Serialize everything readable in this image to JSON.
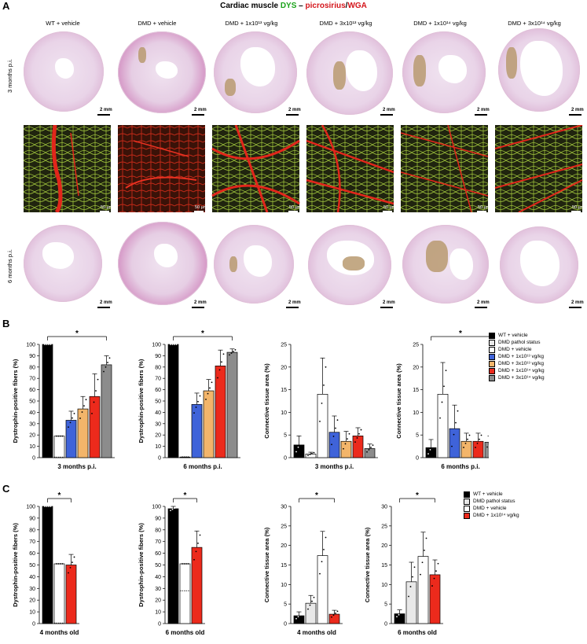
{
  "panels": {
    "a": "A",
    "b": "B",
    "c": "C"
  },
  "title": {
    "prefix": "Cardiac muscle ",
    "dys": "DYS",
    "dash": " – ",
    "picro": "picrosirius",
    "slash": "/",
    "wga": "WGA"
  },
  "panelA": {
    "columns": [
      "WT + vehicle",
      "DMD + vehicle",
      "DMD + 1x10¹³ vg/kg",
      "DMD + 3x10¹³ vg/kg",
      "DMD + 1x10¹⁴ vg/kg",
      "DMD + 3x10¹⁴ vg/kg"
    ],
    "rows": [
      "3 months p.i.",
      "6 months p.i."
    ],
    "scale_mm": "2 mm",
    "scale_um": "50 µm"
  },
  "legendB": {
    "items": [
      "WT + vehicle",
      "DMD pathol status",
      "DMD + vehicle",
      "DMD + 1x10¹³ vg/kg",
      "DMD + 3x10¹³ vg/kg",
      "DMD + 1x10¹⁴ vg/kg",
      "DMD + 3x10¹⁴ vg/kg"
    ],
    "colors": [
      "#000000",
      "#e8e8e8",
      "#ffffff",
      "#3f63d9",
      "#f3b56a",
      "#ec2a1c",
      "#8c8c8c"
    ]
  },
  "legendC": {
    "items": [
      "WT + vehicle",
      "DMD pathol status",
      "DMD + vehicle",
      "DMD + 1x10¹⁴ vg/kg"
    ],
    "colors": [
      "#000000",
      "#e8e8e8",
      "#ffffff",
      "#ec2a1c"
    ]
  },
  "chart_data": [
    {
      "id": "B1",
      "type": "bar",
      "ylabel": "Dystrophin-positive fibers (%)",
      "xlabel": "3 months p.i.",
      "ylim": [
        0,
        100
      ],
      "ticks": [
        0,
        10,
        20,
        30,
        40,
        50,
        60,
        70,
        80,
        90,
        100
      ],
      "bars": [
        {
          "fill": "#000000",
          "value": 100,
          "err": 0
        },
        {
          "fill": "#ffffff",
          "value": 19,
          "err": 0,
          "pathol": 0.5
        },
        {
          "fill": "#3f63d9",
          "value": 33,
          "err": 8
        },
        {
          "fill": "#f3b56a",
          "value": 43,
          "err": 11
        },
        {
          "fill": "#ec2a1c",
          "value": 54,
          "err": 20
        },
        {
          "fill": "#8c8c8c",
          "value": 82,
          "err": 8
        }
      ],
      "sig": "*"
    },
    {
      "id": "B2",
      "type": "bar",
      "ylabel": "Dystrophin-positive fibers (%)",
      "xlabel": "6 months p.i.",
      "ylim": [
        0,
        100
      ],
      "ticks": [
        0,
        10,
        20,
        30,
        40,
        50,
        60,
        70,
        80,
        90,
        100
      ],
      "bars": [
        {
          "fill": "#000000",
          "value": 100,
          "err": 0
        },
        {
          "fill": "#ffffff",
          "value": 0.5,
          "err": 0,
          "pathol": 0.5
        },
        {
          "fill": "#3f63d9",
          "value": 47,
          "err": 10
        },
        {
          "fill": "#f3b56a",
          "value": 59,
          "err": 10
        },
        {
          "fill": "#ec2a1c",
          "value": 81,
          "err": 14
        },
        {
          "fill": "#8c8c8c",
          "value": 93,
          "err": 3
        }
      ],
      "sig": "*"
    },
    {
      "id": "B3",
      "type": "bar",
      "ylabel": "Connective tissue area (%)",
      "xlabel": "3 months p.i.",
      "ylim": [
        0,
        25
      ],
      "ticks": [
        0,
        5,
        10,
        15,
        20,
        25
      ],
      "bars": [
        {
          "fill": "#000000",
          "value": 2.8,
          "err": 2
        },
        {
          "fill": "#ffffff",
          "value": 0.8,
          "err": 0.4
        },
        {
          "fill": "#ffffff",
          "value": 14,
          "err": 8
        },
        {
          "fill": "#3f63d9",
          "value": 5.6,
          "err": 3.6
        },
        {
          "fill": "#f3b56a",
          "value": 3.6,
          "err": 2.2
        },
        {
          "fill": "#ec2a1c",
          "value": 4.8,
          "err": 1.8
        },
        {
          "fill": "#8c8c8c",
          "value": 2,
          "err": 1
        }
      ]
    },
    {
      "id": "B4",
      "type": "bar",
      "ylabel": "Connective tissue area (%)",
      "xlabel": "6 months p.i.",
      "ylim": [
        0,
        25
      ],
      "ticks": [
        0,
        5,
        10,
        15,
        20,
        25
      ],
      "bars": [
        {
          "fill": "#000000",
          "value": 2.2,
          "err": 1.8
        },
        {
          "fill": "#ffffff",
          "value": 14,
          "err": 7
        },
        {
          "fill": "#3f63d9",
          "value": 6.4,
          "err": 5.2
        },
        {
          "fill": "#f3b56a",
          "value": 3.6,
          "err": 1.8
        },
        {
          "fill": "#ec2a1c",
          "value": 3.6,
          "err": 1.8
        },
        {
          "fill": "#8c8c8c",
          "value": 3.4,
          "err": 1.4
        }
      ],
      "sig": "*"
    },
    {
      "id": "C1",
      "type": "bar",
      "ylabel": "Dystrophin-positive fibers (%)",
      "xlabel": "4 months old",
      "ylim": [
        0,
        100
      ],
      "ticks": [
        0,
        10,
        20,
        30,
        40,
        50,
        60,
        70,
        80,
        90,
        100
      ],
      "bars": [
        {
          "fill": "#000000",
          "value": 100,
          "err": 0
        },
        {
          "fill": "#ffffff",
          "value": 51,
          "err": 0,
          "pathol": 0.5
        },
        {
          "fill": "#ec2a1c",
          "value": 50,
          "err": 9
        }
      ],
      "sig": "*"
    },
    {
      "id": "C2",
      "type": "bar",
      "ylabel": "Dystrophin-positive fibers (%)",
      "xlabel": "6 months old",
      "ylim": [
        0,
        100
      ],
      "ticks": [
        0,
        10,
        20,
        30,
        40,
        50,
        60,
        70,
        80,
        90,
        100
      ],
      "bars": [
        {
          "fill": "#000000",
          "value": 98,
          "err": 2
        },
        {
          "fill": "#ffffff",
          "value": 51,
          "err": 0,
          "pathol": 28
        },
        {
          "fill": "#ec2a1c",
          "value": 65,
          "err": 14
        }
      ],
      "sig": "*"
    },
    {
      "id": "C3",
      "type": "bar",
      "ylabel": "Connective tissue area (%)",
      "xlabel": "4 months old",
      "ylim": [
        0,
        30
      ],
      "ticks": [
        0,
        5,
        10,
        15,
        20,
        25,
        30
      ],
      "bars": [
        {
          "fill": "#000000",
          "value": 2,
          "err": 1
        },
        {
          "fill": "#e8e8e8",
          "value": 5.2,
          "err": 2
        },
        {
          "fill": "#ffffff",
          "value": 17.4,
          "err": 6.2
        },
        {
          "fill": "#ec2a1c",
          "value": 2.4,
          "err": 1
        }
      ],
      "sig": "*"
    },
    {
      "id": "C4",
      "type": "bar",
      "ylabel": "Connective tissue area (%)",
      "xlabel": "6 months old",
      "ylim": [
        0,
        30
      ],
      "ticks": [
        0,
        5,
        10,
        15,
        20,
        25,
        30
      ],
      "bars": [
        {
          "fill": "#000000",
          "value": 2.5,
          "err": 1
        },
        {
          "fill": "#e8e8e8",
          "value": 10.7,
          "err": 5
        },
        {
          "fill": "#ffffff",
          "value": 17.2,
          "err": 6.2
        },
        {
          "fill": "#ec2a1c",
          "value": 12.5,
          "err": 3.8
        }
      ],
      "sig": "*"
    }
  ]
}
